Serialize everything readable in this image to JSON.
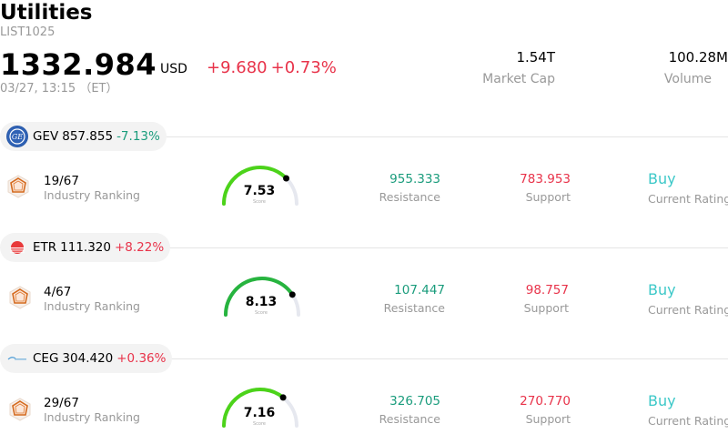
{
  "header": {
    "title": "Utilities",
    "code": "LIST1025",
    "price": "1332.984",
    "currency": "USD",
    "change_abs": "+9.680",
    "change_pct": "+0.73%",
    "time": "03/27, 13:15 （ET）",
    "market_cap_value": "1.54T",
    "market_cap_label": "Market Cap",
    "volume_value": "100.28M",
    "volume_label": "Volume"
  },
  "colors": {
    "up": "#e8334a",
    "down": "#1a9c7c",
    "rating": "#3cc8c8",
    "gauge": "#4cd31a"
  },
  "stocks": [
    {
      "symbol": "GEV",
      "price": "857.855",
      "change": "-7.13%",
      "direction": "down",
      "logo": "ge-vernova-logo",
      "ranking": "19/67",
      "ranking_label": "Industry Ranking",
      "score": "7.53",
      "score_fraction": 0.753,
      "score_label": "Score",
      "resistance": "955.333",
      "resistance_label": "Resistance",
      "support": "783.953",
      "support_label": "Support",
      "rating": "Buy",
      "rating_label": "Current Rating"
    },
    {
      "symbol": "ETR",
      "price": "111.320",
      "change": "+8.22%",
      "direction": "up",
      "logo": "entergy-logo",
      "ranking": "4/67",
      "ranking_label": "Industry Ranking",
      "score": "8.13",
      "score_fraction": 0.813,
      "score_label": "Score",
      "resistance": "107.447",
      "resistance_label": "Resistance",
      "support": "98.757",
      "support_label": "Support",
      "rating": "Buy",
      "rating_label": "Current Rating"
    },
    {
      "symbol": "CEG",
      "price": "304.420",
      "change": "+0.36%",
      "direction": "up",
      "logo": "constellation-logo",
      "ranking": "29/67",
      "ranking_label": "Industry Ranking",
      "score": "7.16",
      "score_fraction": 0.716,
      "score_label": "Score",
      "resistance": "326.705",
      "resistance_label": "Resistance",
      "support": "270.770",
      "support_label": "Support",
      "rating": "Buy",
      "rating_label": "Current Rating"
    }
  ]
}
